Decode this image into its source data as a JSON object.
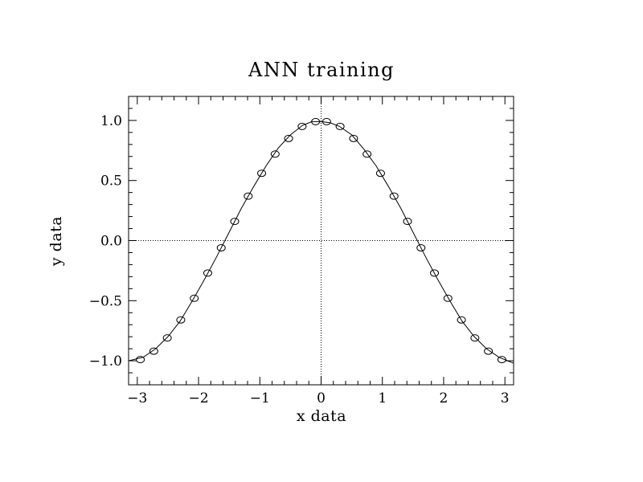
{
  "chart_data": {
    "type": "scatter",
    "title": "ANN training",
    "xlabel": "x data",
    "ylabel": "y data",
    "xlim": [
      -3.14159,
      3.14159
    ],
    "ylim": [
      -1.2,
      1.2
    ],
    "x_ticks": [
      -3,
      -2,
      -1,
      0,
      1,
      2,
      3
    ],
    "x_tick_labels": [
      "−3",
      "−2",
      "−1",
      "0",
      "1",
      "2",
      "3"
    ],
    "y_ticks": [
      -1.0,
      -0.5,
      0.0,
      0.5,
      1.0
    ],
    "y_tick_labels": [
      "−1.0",
      "−0.5",
      "0.0",
      "0.5",
      "1.0"
    ],
    "reference_lines": {
      "x": 0,
      "y": 0,
      "style": "dotted"
    },
    "grid": false,
    "legend": "none",
    "series": [
      {
        "kind": "scatter",
        "marker": "open-circle",
        "x": [
          -2.95,
          -2.73,
          -2.51,
          -2.29,
          -2.07,
          -1.85,
          -1.63,
          -1.41,
          -1.19,
          -0.97,
          -0.75,
          -0.53,
          -0.31,
          -0.09,
          0.09,
          0.31,
          0.53,
          0.75,
          0.97,
          1.19,
          1.41,
          1.63,
          1.85,
          2.07,
          2.29,
          2.51,
          2.73,
          2.95
        ],
        "y": [
          -0.99,
          -0.92,
          -0.81,
          -0.66,
          -0.48,
          -0.27,
          -0.06,
          0.16,
          0.37,
          0.56,
          0.72,
          0.85,
          0.95,
          0.99,
          0.99,
          0.95,
          0.85,
          0.72,
          0.56,
          0.37,
          0.16,
          -0.06,
          -0.27,
          -0.48,
          -0.66,
          -0.81,
          -0.92,
          -0.99
        ]
      },
      {
        "kind": "line",
        "x": [
          -3.14,
          -2.9,
          -2.7,
          -2.5,
          -2.3,
          -2.1,
          -1.9,
          -1.7,
          -1.5,
          -1.3,
          -1.1,
          -0.9,
          -0.7,
          -0.5,
          -0.3,
          -0.15,
          0.0,
          0.15,
          0.3,
          0.5,
          0.7,
          0.9,
          1.1,
          1.3,
          1.5,
          1.7,
          1.9,
          2.1,
          2.3,
          2.5,
          2.7,
          2.9,
          3.14
        ],
        "y": [
          -1.0,
          -0.97,
          -0.9,
          -0.8,
          -0.67,
          -0.5,
          -0.32,
          -0.13,
          0.07,
          0.27,
          0.45,
          0.62,
          0.77,
          0.88,
          0.96,
          0.99,
          0.99,
          0.98,
          0.95,
          0.88,
          0.76,
          0.62,
          0.45,
          0.27,
          0.07,
          -0.13,
          -0.32,
          -0.5,
          -0.67,
          -0.8,
          -0.9,
          -0.97,
          -1.02
        ]
      }
    ]
  }
}
